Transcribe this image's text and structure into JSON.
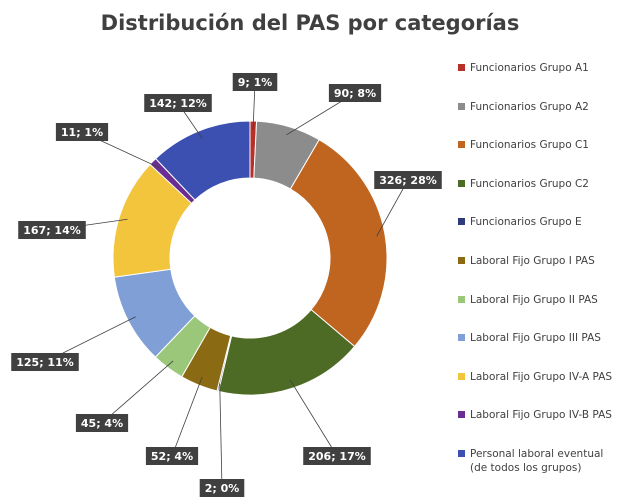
{
  "chart_data": {
    "type": "donut",
    "title": "Distribución del PAS por categorías",
    "categories": [
      "Funcionarios Grupo A1",
      "Funcionarios Grupo A2",
      "Funcionarios Grupo C1",
      "Funcionarios Grupo C2",
      "Funcionarios Grupo E",
      "Laboral Fijo Grupo I PAS",
      "Laboral Fijo Grupo II PAS",
      "Laboral Fijo Grupo III PAS",
      "Laboral Fijo Grupo IV-A PAS",
      "Laboral Fijo Grupo IV-B PAS",
      "Personal laboral eventual (de todos los grupos)"
    ],
    "values": [
      9,
      90,
      326,
      206,
      2,
      52,
      45,
      125,
      167,
      11,
      142
    ],
    "value_labels": [
      "9; 1%",
      "90; 8%",
      "326; 28%",
      "206; 17%",
      "2; 0%",
      "52; 4%",
      "45; 4%",
      "125; 11%",
      "167; 14%",
      "11; 1%",
      "142; 12%"
    ],
    "colors": [
      "#b8302a",
      "#8c8c8c",
      "#c0651f",
      "#4e6b25",
      "#2e3a7a",
      "#8b6a14",
      "#9bc77a",
      "#7f9fd6",
      "#f2c53d",
      "#6a2d91",
      "#3b50b0"
    ],
    "legend": "right"
  }
}
